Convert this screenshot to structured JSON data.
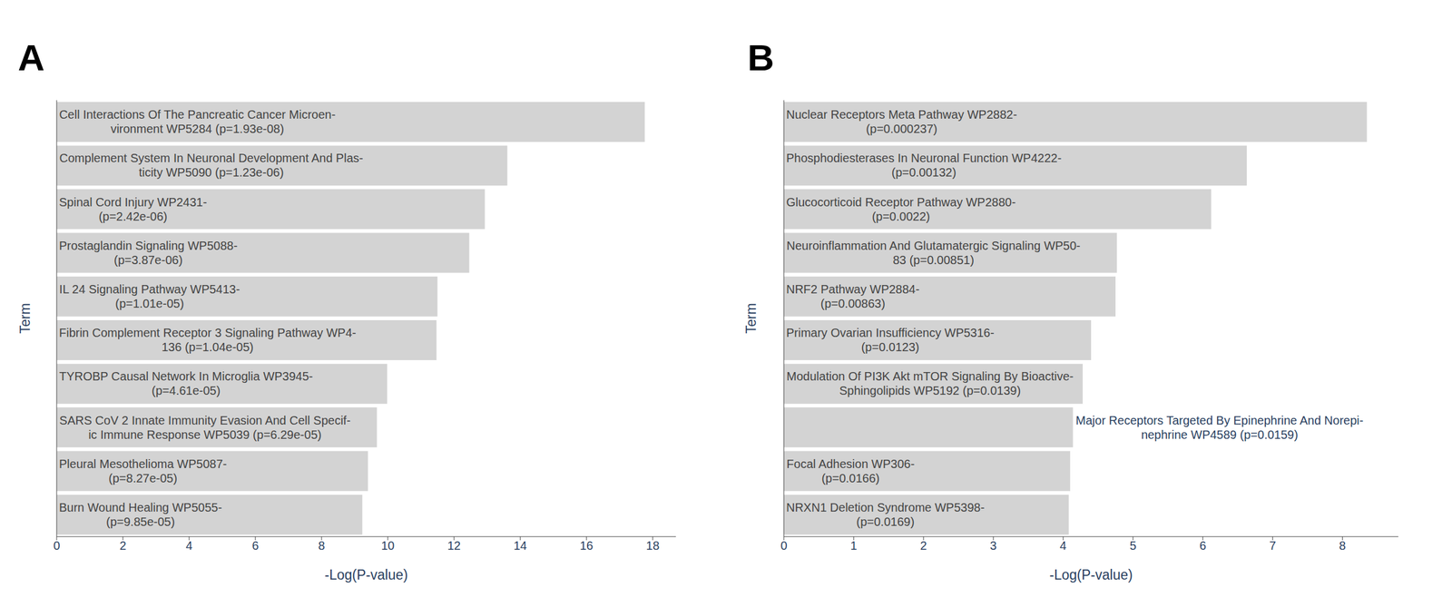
{
  "chart_data": [
    {
      "type": "bar",
      "title": "A",
      "orientation": "horizontal",
      "tick_labels": "x",
      "color": "#d3d3d3",
      "x_label": "-Log(P-value)",
      "y_label": "Term",
      "categories": [
        "Cell Interactions Of The Pancreatic Cancer Microen-\nvironment WP5284 (p=1.93e-08)",
        "Complement System In Neuronal Development And Plas-\nticity WP5090 (p=1.23e-06)",
        "Spinal Cord Injury WP2431-\n(p=2.42e-06)",
        "Prostaglandin Signaling WP5088-\n(p=3.87e-06)",
        "IL 24 Signaling Pathway WP5413-\n(p=1.01e-05)",
        "Fibrin Complement Receptor 3 Signaling Pathway WP4-\n136 (p=1.04e-05)",
        "TYROBP Causal Network In Microglia WP3945-\n(p=4.61e-05)",
        "SARS CoV 2 Innate Immunity Evasion And Cell Specif-\nic Immune Response WP5039 (p=6.29e-05)",
        "Pleural Mesothelioma WP5087-\n(p=8.27e-05)",
        "Burn Wound Healing WP5055-\n(p=9.85e-05)"
      ],
      "values": [
        17.76,
        13.61,
        12.93,
        12.46,
        11.5,
        11.47,
        9.98,
        9.67,
        9.4,
        9.23
      ],
      "xlim": [
        0,
        18.7
      ],
      "xticks": [
        0,
        2,
        4,
        6,
        8,
        10,
        12,
        14,
        16,
        18
      ]
    },
    {
      "type": "bar",
      "title": "B",
      "orientation": "horizontal",
      "tick_labels": "x",
      "color": "#d3d3d3",
      "x_label": "-Log(P-value)",
      "y_label": "Term",
      "categories": [
        "Nuclear Receptors Meta Pathway WP2882-\n(p=0.000237)",
        "Phosphodiesterases In Neuronal Function WP4222-\n(p=0.00132)",
        "Glucocorticoid Receptor Pathway WP2880-\n(p=0.0022)",
        "Neuroinflammation And Glutamatergic Signaling WP50-\n83 (p=0.00851)",
        "NRF2 Pathway WP2884-\n(p=0.00863)",
        "Primary Ovarian Insufficiency WP5316-\n(p=0.0123)",
        "Modulation Of PI3K Akt mTOR Signaling By Bioactive-\nSphingolipids WP5192 (p=0.0139)",
        "Major Receptors Targeted By Epinephrine And Norepi-\nnephrine WP4589 (p=0.0159)",
        "Focal Adhesion WP306-\n(p=0.0166)",
        "NRXN1 Deletion Syndrome WP5398-\n(p=0.0169)"
      ],
      "values": [
        8.35,
        6.63,
        6.12,
        4.77,
        4.75,
        4.4,
        4.28,
        4.14,
        4.1,
        4.08
      ],
      "xlim": [
        0,
        8.8
      ],
      "xticks": [
        0,
        1,
        2,
        3,
        4,
        5,
        6,
        7,
        8
      ]
    }
  ]
}
